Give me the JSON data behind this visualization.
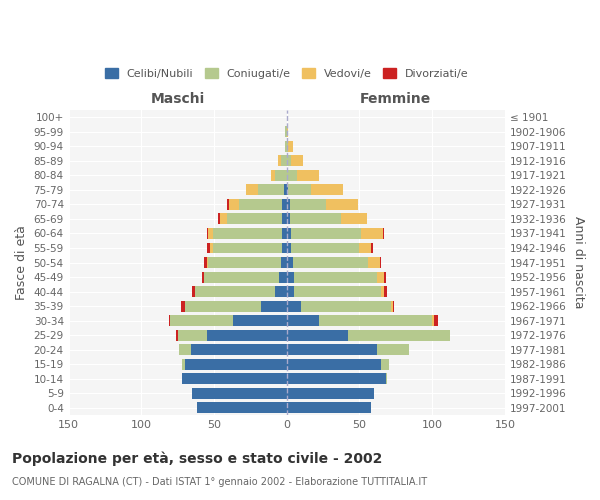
{
  "age_groups": [
    "0-4",
    "5-9",
    "10-14",
    "15-19",
    "20-24",
    "25-29",
    "30-34",
    "35-39",
    "40-44",
    "45-49",
    "50-54",
    "55-59",
    "60-64",
    "65-69",
    "70-74",
    "75-79",
    "80-84",
    "85-89",
    "90-94",
    "95-99",
    "100+"
  ],
  "birth_years": [
    "1997-2001",
    "1992-1996",
    "1987-1991",
    "1982-1986",
    "1977-1981",
    "1972-1976",
    "1967-1971",
    "1962-1966",
    "1957-1961",
    "1952-1956",
    "1947-1951",
    "1942-1946",
    "1937-1941",
    "1932-1936",
    "1927-1931",
    "1922-1926",
    "1917-1921",
    "1912-1916",
    "1907-1911",
    "1902-1906",
    "≤ 1901"
  ],
  "maschi": {
    "celibi": [
      62,
      65,
      72,
      70,
      66,
      55,
      37,
      18,
      8,
      5,
      4,
      3,
      3,
      3,
      3,
      2,
      0,
      0,
      0,
      0,
      0
    ],
    "coniugati": [
      0,
      0,
      0,
      2,
      8,
      20,
      43,
      52,
      55,
      52,
      50,
      48,
      48,
      38,
      30,
      18,
      8,
      4,
      1,
      1,
      0
    ],
    "vedovi": [
      0,
      0,
      0,
      0,
      0,
      0,
      0,
      0,
      0,
      0,
      1,
      2,
      3,
      5,
      7,
      8,
      3,
      2,
      0,
      0,
      0
    ],
    "divorziati": [
      0,
      0,
      0,
      0,
      0,
      1,
      1,
      3,
      2,
      1,
      2,
      2,
      1,
      1,
      1,
      0,
      0,
      0,
      0,
      0,
      0
    ]
  },
  "femmine": {
    "nubili": [
      58,
      60,
      68,
      65,
      62,
      42,
      22,
      10,
      5,
      5,
      4,
      3,
      3,
      2,
      2,
      1,
      0,
      0,
      0,
      0,
      0
    ],
    "coniugate": [
      0,
      0,
      1,
      5,
      22,
      70,
      78,
      62,
      60,
      57,
      52,
      47,
      48,
      35,
      25,
      16,
      7,
      3,
      1,
      0,
      0
    ],
    "vedove": [
      0,
      0,
      0,
      0,
      0,
      0,
      1,
      1,
      2,
      5,
      8,
      8,
      15,
      18,
      22,
      22,
      15,
      8,
      3,
      1,
      0
    ],
    "divorziate": [
      0,
      0,
      0,
      0,
      0,
      0,
      3,
      1,
      2,
      1,
      1,
      1,
      1,
      0,
      0,
      0,
      0,
      0,
      0,
      0,
      0
    ]
  },
  "colors": {
    "celibi_nubili": "#3a6ea5",
    "coniugati_e": "#b5c98e",
    "vedovi_e": "#f0c060",
    "divorziati_e": "#cc2222"
  },
  "xlim": 150,
  "title": "Popolazione per età, sesso e stato civile - 2002",
  "subtitle": "COMUNE DI RAGALNA (CT) - Dati ISTAT 1° gennaio 2002 - Elaborazione TUTTITALIA.IT",
  "ylabel_left": "Fasce di età",
  "ylabel_right": "Anni di nascita",
  "xlabel_left": "Maschi",
  "xlabel_right": "Femmine",
  "bg_color": "#ffffff",
  "plot_bg_color": "#f5f5f5"
}
